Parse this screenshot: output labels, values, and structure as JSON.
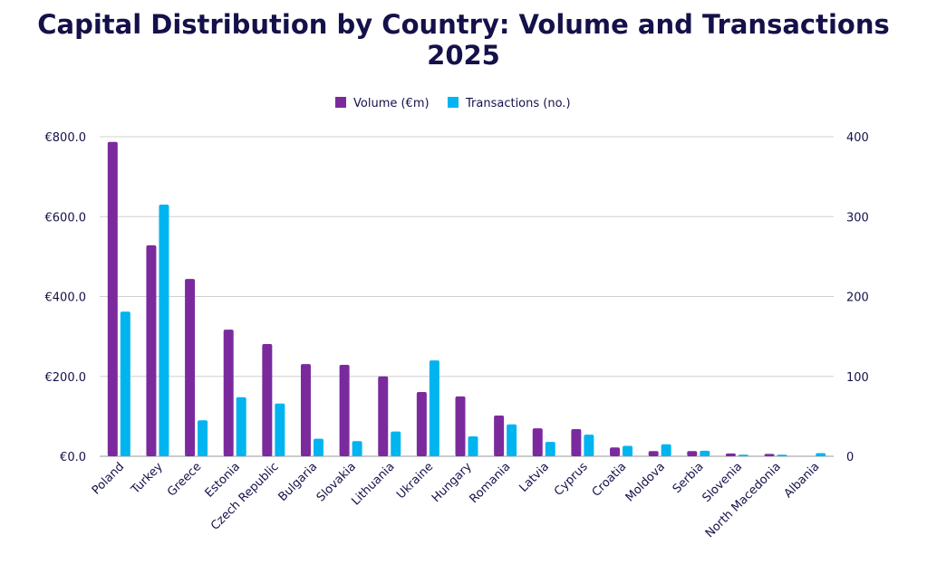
{
  "chart_data": {
    "type": "bar",
    "title": "Capital Distribution by Country: Volume and Transactions 2025",
    "categories": [
      "Poland",
      "Turkey",
      "Greece",
      "Estonia",
      "Czech Republic",
      "Bulgaria",
      "Slovakia",
      "Lithuania",
      "Ukraine",
      "Hungary",
      "Romania",
      "Latvia",
      "Cyprus",
      "Croatia",
      "Moldova",
      "Serbia",
      "Slovenia",
      "North Macedonia",
      "Albania"
    ],
    "series": [
      {
        "name": "Volume (€m)",
        "axis": "left",
        "color": "#7b2a9e",
        "values": [
          787,
          528,
          444,
          317,
          281,
          231,
          229,
          200,
          161,
          150,
          102,
          70,
          68,
          22,
          13,
          13,
          7,
          6,
          0
        ]
      },
      {
        "name": "Transactions (no.)",
        "axis": "right",
        "color": "#00b4f0",
        "values": [
          181,
          315,
          45,
          74,
          66,
          22,
          19,
          31,
          120,
          25,
          40,
          18,
          27,
          13,
          15,
          7,
          2,
          2,
          4
        ]
      }
    ],
    "left_axis": {
      "ylim": [
        0,
        800
      ],
      "ticks": [
        "€0.0",
        "€200.0",
        "€400.0",
        "€600.0",
        "€800.0"
      ]
    },
    "right_axis": {
      "ylim": [
        0,
        400
      ],
      "ticks": [
        "0",
        "100",
        "200",
        "300",
        "400"
      ]
    },
    "legend": "top-center",
    "grid": true
  }
}
